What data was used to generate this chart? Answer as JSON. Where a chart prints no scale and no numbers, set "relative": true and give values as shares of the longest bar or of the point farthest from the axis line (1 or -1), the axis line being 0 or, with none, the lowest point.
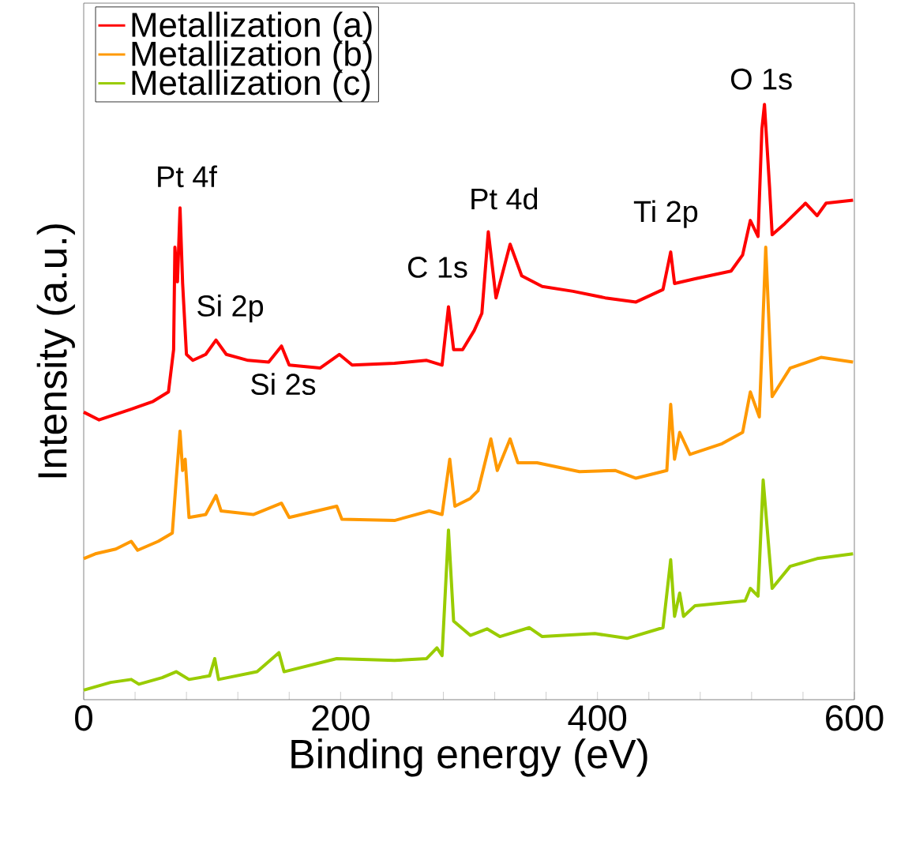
{
  "chart_data": {
    "type": "line",
    "relative": true,
    "xlabel": "Binding energy (eV)",
    "ylabel": "Intensity (a.u.)",
    "xlim": [
      0,
      600
    ],
    "xticks": [
      0,
      {
        "value": 40,
        "label": null
      },
      {
        "value": 80,
        "label": null
      },
      {
        "value": 120,
        "label": null
      },
      {
        "value": 160,
        "label": null
      },
      200,
      {
        "value": 240,
        "label": null
      },
      {
        "value": 280,
        "label": null
      },
      {
        "value": 320,
        "label": null
      },
      {
        "value": 360,
        "label": null
      },
      400,
      {
        "value": 440,
        "label": null
      },
      {
        "value": 480,
        "label": null
      },
      {
        "value": 520,
        "label": null
      },
      {
        "value": 560,
        "label": null
      },
      600
    ],
    "legend": "top left",
    "grid": false,
    "marker": "none",
    "annotations": [
      {
        "text": "Pt 4f",
        "x": 75,
        "y": 0.826
      },
      {
        "text": "Si 2p",
        "x": 103,
        "y": 0.604
      },
      {
        "text": "Si 2s",
        "x": 154,
        "y": 0.594
      },
      {
        "text": "C 1s",
        "x": 284,
        "y": 0.66
      },
      {
        "text": "Pt 4d",
        "x": 315,
        "y": 0.786
      },
      {
        "text": "Ti 2p",
        "x": 457,
        "y": 0.752
      },
      {
        "text": "O 1s",
        "x": 530,
        "y": 1.0
      }
    ],
    "series": [
      {
        "name": "Metallization (a)",
        "color": "#ff0000",
        "x": [
          0,
          12,
          37,
          54,
          66,
          70,
          71,
          73,
          75,
          77,
          80,
          85,
          95,
          103,
          111,
          128,
          144,
          154,
          160,
          184,
          199,
          209,
          242,
          267,
          279,
          284,
          288,
          295,
          304,
          310,
          315,
          321,
          332,
          341,
          357,
          381,
          406,
          430,
          451,
          457,
          460,
          476,
          504,
          513,
          519,
          525,
          528,
          530,
          534,
          536,
          546,
          562,
          571,
          578,
          599
        ],
        "values": [
          0.483,
          0.47,
          0.488,
          0.501,
          0.517,
          0.588,
          0.76,
          0.702,
          0.826,
          0.7,
          0.58,
          0.57,
          0.58,
          0.604,
          0.58,
          0.57,
          0.567,
          0.594,
          0.562,
          0.557,
          0.58,
          0.562,
          0.565,
          0.57,
          0.562,
          0.66,
          0.588,
          0.588,
          0.62,
          0.649,
          0.786,
          0.675,
          0.765,
          0.712,
          0.694,
          0.686,
          0.675,
          0.668,
          0.689,
          0.752,
          0.699,
          0.707,
          0.72,
          0.747,
          0.805,
          0.778,
          0.958,
          1.0,
          0.86,
          0.781,
          0.8,
          0.834,
          0.813,
          0.834,
          0.839
        ]
      },
      {
        "name": "Metallization (b)",
        "color": "#ff9900",
        "x": [
          0,
          9,
          25,
          37,
          42,
          58,
          69,
          72,
          75,
          77,
          79,
          82,
          95,
          103,
          107,
          132,
          154,
          160,
          197,
          201,
          242,
          269,
          279,
          285,
          289,
          301,
          307,
          317,
          322,
          332,
          338,
          353,
          386,
          414,
          430,
          454,
          457,
          460,
          464,
          472,
          497,
          513,
          519,
          526,
          531,
          536,
          550,
          574,
          599
        ],
        "values": [
          0.237,
          0.245,
          0.253,
          0.266,
          0.251,
          0.266,
          0.28,
          0.369,
          0.451,
          0.385,
          0.404,
          0.306,
          0.311,
          0.343,
          0.317,
          0.311,
          0.33,
          0.306,
          0.325,
          0.303,
          0.301,
          0.317,
          0.311,
          0.404,
          0.325,
          0.338,
          0.351,
          0.438,
          0.385,
          0.438,
          0.398,
          0.398,
          0.383,
          0.385,
          0.372,
          0.385,
          0.496,
          0.404,
          0.449,
          0.412,
          0.43,
          0.449,
          0.517,
          0.475,
          0.76,
          0.509,
          0.557,
          0.575,
          0.567
        ]
      },
      {
        "name": "Metallization (c)",
        "color": "#99cc00",
        "x": [
          0,
          21,
          37,
          43,
          61,
          72,
          82,
          98,
          102,
          105,
          135,
          152,
          156,
          197,
          242,
          267,
          275,
          279,
          284,
          288,
          301,
          314,
          324,
          347,
          357,
          398,
          423,
          451,
          457,
          460,
          464,
          467,
          476,
          515,
          519,
          525,
          529,
          536,
          550,
          571,
          599
        ],
        "values": [
          0.016,
          0.029,
          0.034,
          0.026,
          0.037,
          0.047,
          0.034,
          0.04,
          0.069,
          0.034,
          0.047,
          0.079,
          0.047,
          0.069,
          0.066,
          0.069,
          0.087,
          0.074,
          0.285,
          0.132,
          0.108,
          0.119,
          0.106,
          0.121,
          0.106,
          0.111,
          0.103,
          0.121,
          0.235,
          0.14,
          0.179,
          0.14,
          0.158,
          0.166,
          0.187,
          0.174,
          0.369,
          0.187,
          0.224,
          0.237,
          0.245
        ]
      }
    ]
  }
}
